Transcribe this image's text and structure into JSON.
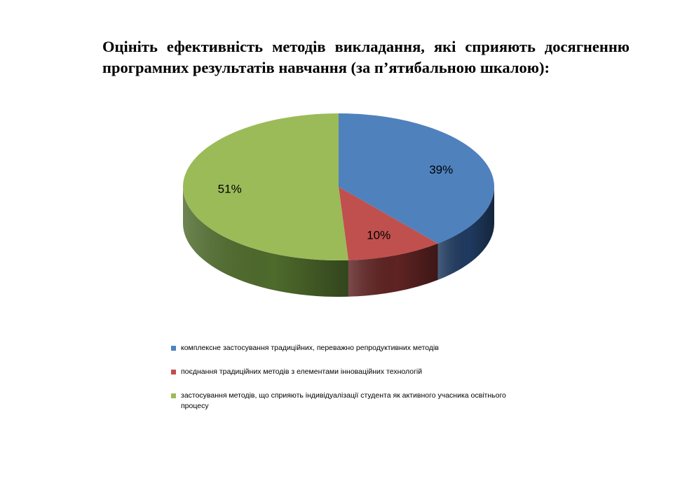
{
  "title": "Оцініть ефективність методів викладання, які сприяють досягненню програмних результатів навчання (за п’ятибальною шкалою):",
  "chart_data": {
    "type": "pie",
    "style": "3d",
    "categories": [
      "комплексне застосування традиційних, переважно репродуктивних методів",
      "поєднання традиційних методів з елементами інноваційних технологій",
      "застосування методів, що сприяють індивідуалізації студента як активного учасника освітнього процесу"
    ],
    "values": [
      39,
      10,
      51
    ],
    "labels": [
      "39%",
      "10%",
      "51%"
    ],
    "colors": [
      "#4f81bd",
      "#c0504d",
      "#9bbb59"
    ],
    "side_colors": [
      "#1f3a5f",
      "#5e2322",
      "#4e6a2c"
    ],
    "legend_position": "bottom"
  }
}
